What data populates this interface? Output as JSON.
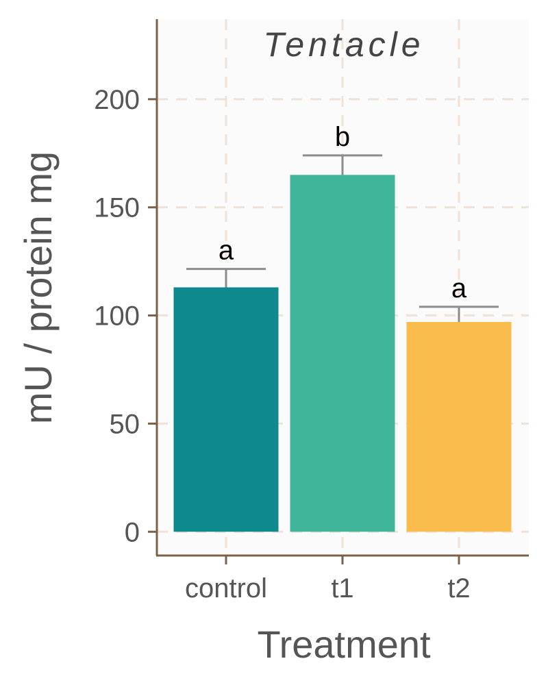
{
  "chart_data": {
    "type": "bar",
    "title": "Tentacle",
    "xlabel": "Treatment",
    "ylabel": "mU / protein mg",
    "categories": [
      "control",
      "t1",
      "t2"
    ],
    "values": [
      113,
      165,
      97
    ],
    "errors": [
      8.5,
      9,
      7
    ],
    "significance_labels": [
      "a",
      "b",
      "a"
    ],
    "colors": [
      "#0e8a8e",
      "#3fb59a",
      "#fbbc4e"
    ],
    "yticks": [
      0,
      50,
      100,
      150,
      200
    ],
    "ylim": [
      -11,
      237
    ],
    "grid": true
  }
}
